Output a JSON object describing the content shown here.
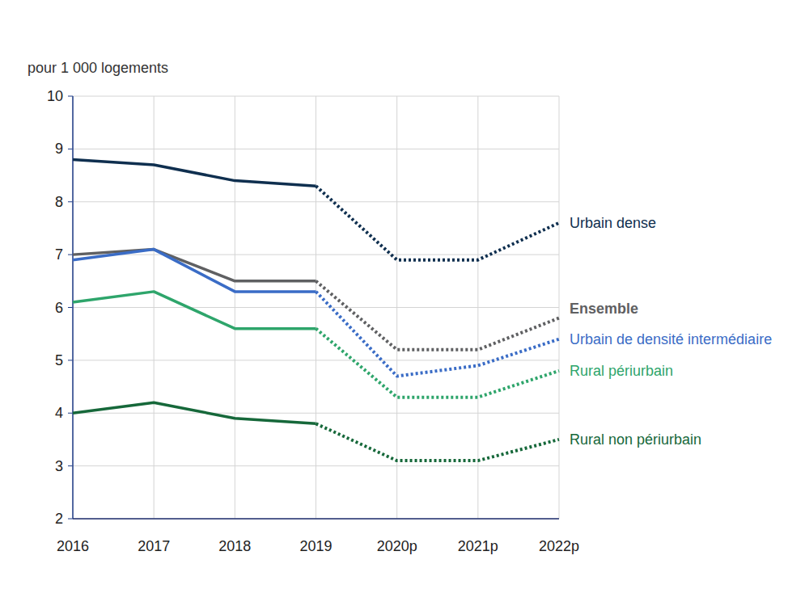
{
  "chart_data": {
    "type": "line",
    "y_axis_label": "pour 1 000 logements",
    "categories": [
      "2016",
      "2017",
      "2018",
      "2019",
      "2020p",
      "2021p",
      "2022p"
    ],
    "series": [
      {
        "name": "Urbain dense",
        "color": "#0f2f4f",
        "line_style": "solid",
        "values": [
          8.8,
          8.7,
          8.4,
          8.3,
          6.9,
          6.9,
          7.6
        ]
      },
      {
        "name": "Ensemble",
        "color": "#5f6062",
        "line_style": "solid",
        "values": [
          7.0,
          7.1,
          6.5,
          6.5,
          5.2,
          5.2,
          5.8
        ]
      },
      {
        "name": "Urbain de densité intermédiaire",
        "color": "#3a6cc6",
        "line_style": "solid",
        "values": [
          6.9,
          7.1,
          6.3,
          6.3,
          4.7,
          4.9,
          5.4
        ]
      },
      {
        "name": "Rural périurbain",
        "color": "#2ea56b",
        "line_style": "solid",
        "values": [
          6.1,
          6.3,
          5.6,
          5.6,
          4.3,
          4.3,
          4.8
        ]
      },
      {
        "name": "Rural non périurbain",
        "color": "#16683a",
        "line_style": "solid",
        "values": [
          4.0,
          4.2,
          3.9,
          3.8,
          3.1,
          3.1,
          3.5
        ]
      }
    ],
    "ylim": [
      2,
      10
    ],
    "yticks": [
      2,
      3,
      4,
      5,
      6,
      7,
      8,
      9,
      10
    ],
    "grid": true
  }
}
